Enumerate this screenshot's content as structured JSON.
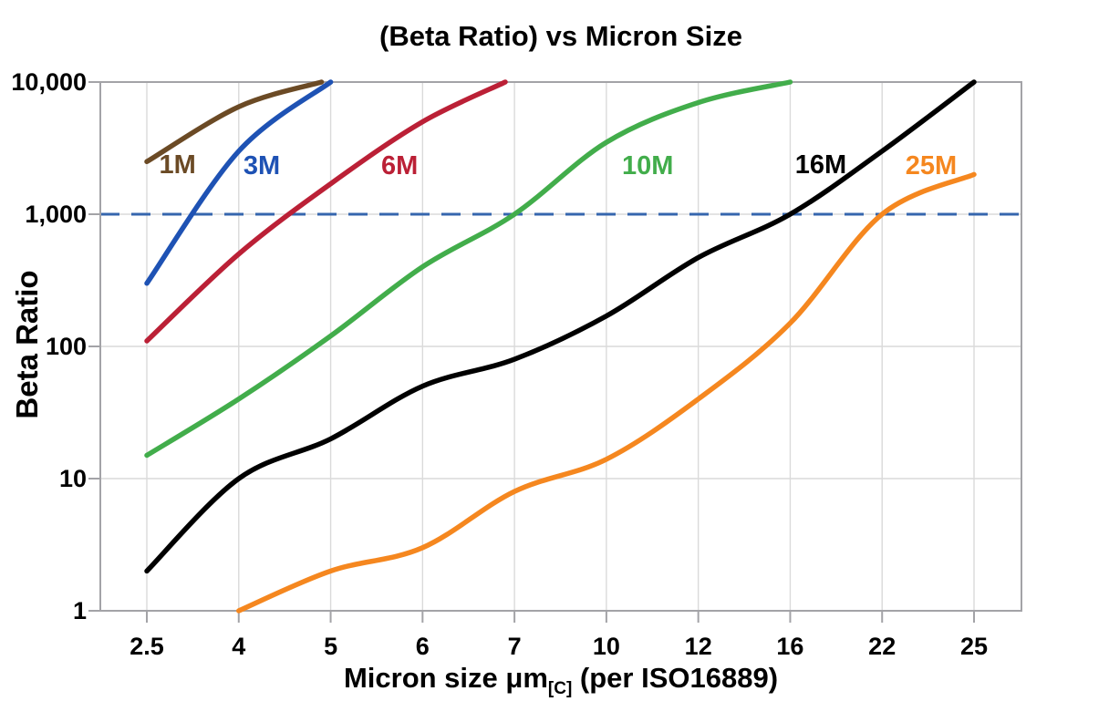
{
  "title": "(Beta Ratio) vs Micron Size",
  "chart_data": {
    "type": "line",
    "title": "(Beta Ratio) vs Micron Size",
    "ylabel": "Beta Ratio",
    "xlabel_prefix": "Micron size μm",
    "xlabel_sub": "[C]",
    "xlabel_suffix": " (per ISO16889)",
    "x_categories": [
      2.5,
      4,
      5,
      6,
      7,
      10,
      12,
      16,
      22,
      25
    ],
    "x_tick_labels": [
      "2.5",
      "4",
      "5",
      "6",
      "7",
      "10",
      "12",
      "16",
      "22",
      "25"
    ],
    "y_scale": "log",
    "ylim": [
      1,
      10000
    ],
    "y_ticks": [
      1,
      10,
      100,
      1000,
      10000
    ],
    "y_tick_labels": [
      "1",
      "10",
      "100",
      "1,000",
      "10,000"
    ],
    "grid": true,
    "legend": "inline-labels",
    "frame_color": "#a3a3a7",
    "grid_color": "#dadada",
    "reference_line": {
      "value": 1000,
      "color": "#3566ae",
      "style": "dashed"
    },
    "series": [
      {
        "name": "1M",
        "color": "#6b4a25",
        "label": {
          "x": 3.0,
          "y": 2400
        },
        "points": [
          [
            2.5,
            2500
          ],
          [
            4,
            6500
          ],
          [
            4.9,
            10000
          ]
        ]
      },
      {
        "name": "3M",
        "color": "#1e52b4",
        "label": {
          "x": 4.25,
          "y": 2350
        },
        "points": [
          [
            2.5,
            300
          ],
          [
            4,
            3000
          ],
          [
            5,
            10000
          ]
        ]
      },
      {
        "name": "6M",
        "color": "#bb2036",
        "label": {
          "x": 5.75,
          "y": 2350
        },
        "points": [
          [
            2.5,
            110
          ],
          [
            4,
            500
          ],
          [
            5,
            1700
          ],
          [
            6,
            5000
          ],
          [
            6.9,
            10000
          ]
        ]
      },
      {
        "name": "10M",
        "color": "#42ad4b",
        "label": {
          "x": 10.9,
          "y": 2350
        },
        "points": [
          [
            2.5,
            15
          ],
          [
            4,
            40
          ],
          [
            5,
            120
          ],
          [
            6,
            400
          ],
          [
            7,
            1000
          ],
          [
            10,
            3500
          ],
          [
            12,
            7000
          ],
          [
            16,
            10000
          ]
        ]
      },
      {
        "name": "16M",
        "color": "#000000",
        "label": {
          "x": 18.0,
          "y": 2400
        },
        "points": [
          [
            2.5,
            2
          ],
          [
            4,
            10
          ],
          [
            5,
            20
          ],
          [
            6,
            50
          ],
          [
            7,
            80
          ],
          [
            10,
            170
          ],
          [
            12,
            470
          ],
          [
            16,
            1000
          ],
          [
            22,
            3000
          ],
          [
            25,
            10000
          ]
        ]
      },
      {
        "name": "25M",
        "color": "#f5871f",
        "label": {
          "x": 23.6,
          "y": 2350
        },
        "points": [
          [
            4,
            1
          ],
          [
            5,
            2
          ],
          [
            6,
            3
          ],
          [
            7,
            8
          ],
          [
            10,
            14
          ],
          [
            12,
            40
          ],
          [
            16,
            150
          ],
          [
            22,
            1000
          ],
          [
            25,
            2000
          ]
        ]
      }
    ]
  }
}
